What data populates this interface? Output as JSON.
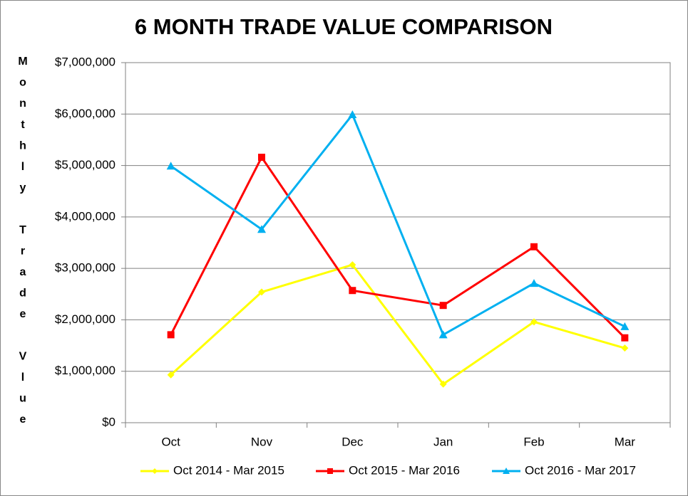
{
  "chart_data": {
    "type": "line",
    "title": "6 MONTH TRADE VALUE COMPARISON",
    "y_label": "Monthly Trade Vlue",
    "categories": [
      "Oct",
      "Nov",
      "Dec",
      "Jan",
      "Feb",
      "Mar"
    ],
    "series": [
      {
        "name": "Oct 2014 - Mar 2015",
        "color": "#ffff00",
        "marker": "diamond",
        "values": [
          930000,
          2540000,
          3070000,
          750000,
          1960000,
          1450000
        ]
      },
      {
        "name": "Oct 2015 - Mar 2016",
        "color": "#ff0000",
        "marker": "square",
        "values": [
          1710000,
          5160000,
          2570000,
          2280000,
          3420000,
          1650000
        ]
      },
      {
        "name": "Oct 2016 - Mar 2017",
        "color": "#00b0f0",
        "marker": "triangle",
        "values": [
          4990000,
          3760000,
          5990000,
          1710000,
          2710000,
          1870000
        ]
      }
    ],
    "ylim": [
      0,
      7000000
    ],
    "yticks": [
      {
        "value": 0,
        "label": "$0"
      },
      {
        "value": 1000000,
        "label": "$1,000,000"
      },
      {
        "value": 2000000,
        "label": "$2,000,000"
      },
      {
        "value": 3000000,
        "label": "$3,000,000"
      },
      {
        "value": 4000000,
        "label": "$4,000,000"
      },
      {
        "value": 5000000,
        "label": "$5,000,000"
      },
      {
        "value": 6000000,
        "label": "$6,000,000"
      },
      {
        "value": 7000000,
        "label": "$7,000,000"
      }
    ],
    "grid": true,
    "legend": "bottom"
  }
}
